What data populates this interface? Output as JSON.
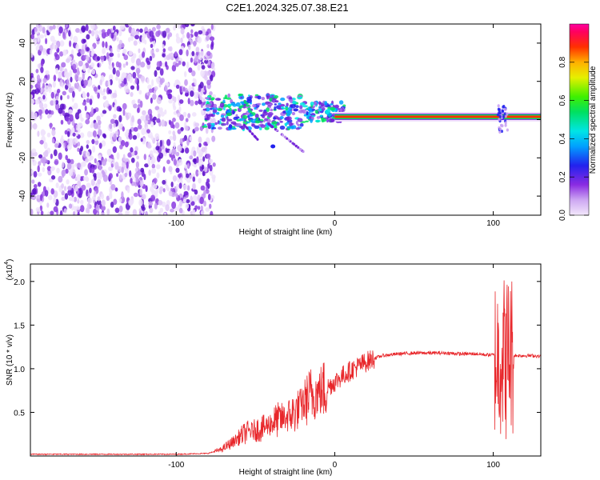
{
  "figure": {
    "title": "C2E1.2024.325.07.38.E21"
  },
  "chart_data": [
    {
      "type": "heatmap",
      "name": "spectrogram",
      "xlabel": "Height of straight line (km)",
      "ylabel": "Frequency (Hz)",
      "xlim": [
        -192,
        130
      ],
      "ylim": [
        -50,
        50
      ],
      "xticks": [
        -100,
        0,
        100
      ],
      "xtick_labels": [
        "-100",
        "0",
        "100"
      ],
      "yticks": [
        -40,
        -20,
        0,
        20,
        40
      ],
      "ytick_labels": [
        "-40",
        "-20",
        "0",
        "20",
        "40"
      ],
      "noise_region_x": [
        -192,
        -76
      ],
      "signal_line": {
        "frequency_hz": 1.5,
        "x_start": 0,
        "x_end": 130
      },
      "colorbar": {
        "label": "Normalized spectral amplitude",
        "range": [
          0,
          1
        ],
        "ticks": [
          0.0,
          0.2,
          0.4,
          0.6,
          0.8
        ],
        "tick_labels": [
          "0.0",
          "0.2",
          "0.4",
          "0.6",
          "0.8"
        ]
      }
    },
    {
      "type": "line",
      "name": "snr",
      "xlabel": "Height of straight line (km)",
      "ylabel": "SNR (10 * v/v)",
      "y_multiplier_label": "(x10",
      "y_multiplier_exp": "4",
      "xlim": [
        -192,
        130
      ],
      "ylim": [
        0,
        2.2
      ],
      "xticks": [
        -100,
        0,
        100
      ],
      "xtick_labels": [
        "-100",
        "0",
        "100"
      ],
      "yticks": [
        0.5,
        1.0,
        1.5,
        2.0
      ],
      "ytick_labels": [
        "0.5",
        "1.0",
        "1.5",
        "2.0"
      ],
      "series": [
        {
          "name": "SNR",
          "color": "#e8262a",
          "x": [
            -192,
            -150,
            -100,
            -80,
            -72,
            -65,
            -60,
            -55,
            -50,
            -45,
            -40,
            -35,
            -30,
            -25,
            -20,
            -15,
            -10,
            -5,
            0,
            5,
            10,
            15,
            20,
            25,
            30,
            40,
            50,
            60,
            70,
            80,
            90,
            95,
            100,
            103,
            106,
            108,
            110,
            113,
            118,
            125,
            130
          ],
          "y": [
            0.02,
            0.02,
            0.02,
            0.03,
            0.07,
            0.15,
            0.22,
            0.28,
            0.3,
            0.32,
            0.38,
            0.42,
            0.45,
            0.5,
            0.6,
            0.7,
            0.73,
            0.78,
            0.85,
            0.92,
            0.98,
            1.03,
            1.08,
            1.12,
            1.15,
            1.17,
            1.18,
            1.18,
            1.18,
            1.17,
            1.17,
            1.16,
            1.16,
            1.13,
            1.2,
            1.1,
            1.22,
            1.15,
            1.15,
            1.15,
            1.14
          ]
        }
      ]
    }
  ]
}
